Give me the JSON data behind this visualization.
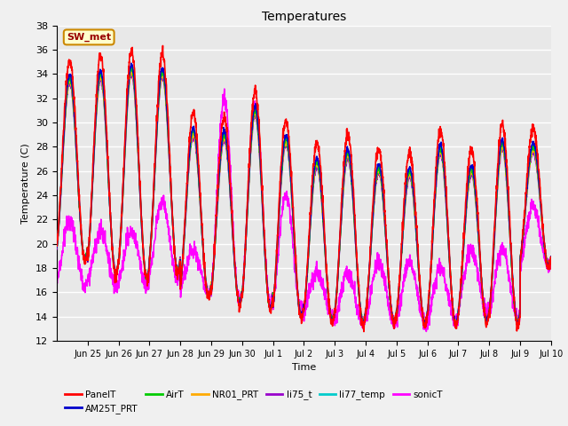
{
  "title": "Temperatures",
  "xlabel": "Time",
  "ylabel": "Temperature (C)",
  "ylim": [
    12,
    38
  ],
  "background_color": "#e8e8e8",
  "plot_bg_color": "#e8e8e8",
  "series": {
    "PanelT": {
      "color": "#ff0000",
      "lw": 1.2
    },
    "AM25T_PRT": {
      "color": "#0000cc",
      "lw": 1.2
    },
    "AirT": {
      "color": "#00cc00",
      "lw": 1.2
    },
    "NR01_PRT": {
      "color": "#ffaa00",
      "lw": 1.2
    },
    "li75_t": {
      "color": "#9900cc",
      "lw": 1.2
    },
    "li77_temp": {
      "color": "#00cccc",
      "lw": 1.2
    },
    "sonicT": {
      "color": "#ff00ff",
      "lw": 1.2
    }
  },
  "annotation_text": "SW_met",
  "annotation_color": "#990000",
  "annotation_bg": "#ffffcc",
  "annotation_border": "#cc8800",
  "tick_labels": [
    "Jun 25",
    "Jun 26",
    "Jun 27",
    "Jun 28",
    "Jun 29",
    "Jun 30",
    "Jul 1",
    "Jul 2",
    "Jul 3",
    "Jul 4",
    "Jul 5",
    "Jul 6",
    "Jul 7",
    "Jul 8",
    "Jul 9",
    "Jul 10"
  ],
  "tick_positions": [
    1,
    2,
    3,
    4,
    5,
    6,
    7,
    8,
    9,
    10,
    11,
    12,
    13,
    14,
    15,
    16
  ],
  "panel_peaks": [
    35.2,
    35.5,
    36.0,
    35.7,
    30.8,
    30.5,
    32.5,
    30.2,
    28.3,
    29.0,
    27.8,
    27.5,
    29.4,
    27.7,
    29.8,
    29.5
  ],
  "panel_mins": [
    18.5,
    17.3,
    17.0,
    17.5,
    15.5,
    15.0,
    14.5,
    13.8,
    13.5,
    13.3,
    13.4,
    13.3,
    13.2,
    13.5,
    13.3,
    18.0
  ],
  "sonic_peaks": [
    21.8,
    21.0,
    21.0,
    23.5,
    19.5,
    32.0,
    31.5,
    24.0,
    17.8,
    17.5,
    18.5,
    18.5,
    18.0,
    19.5,
    19.5,
    23.0
  ],
  "sonic_mins": [
    16.5,
    16.5,
    16.5,
    17.0,
    16.0,
    15.0,
    15.0,
    14.5,
    14.0,
    13.5,
    13.5,
    13.5,
    13.5,
    14.5,
    14.0,
    18.0
  ]
}
